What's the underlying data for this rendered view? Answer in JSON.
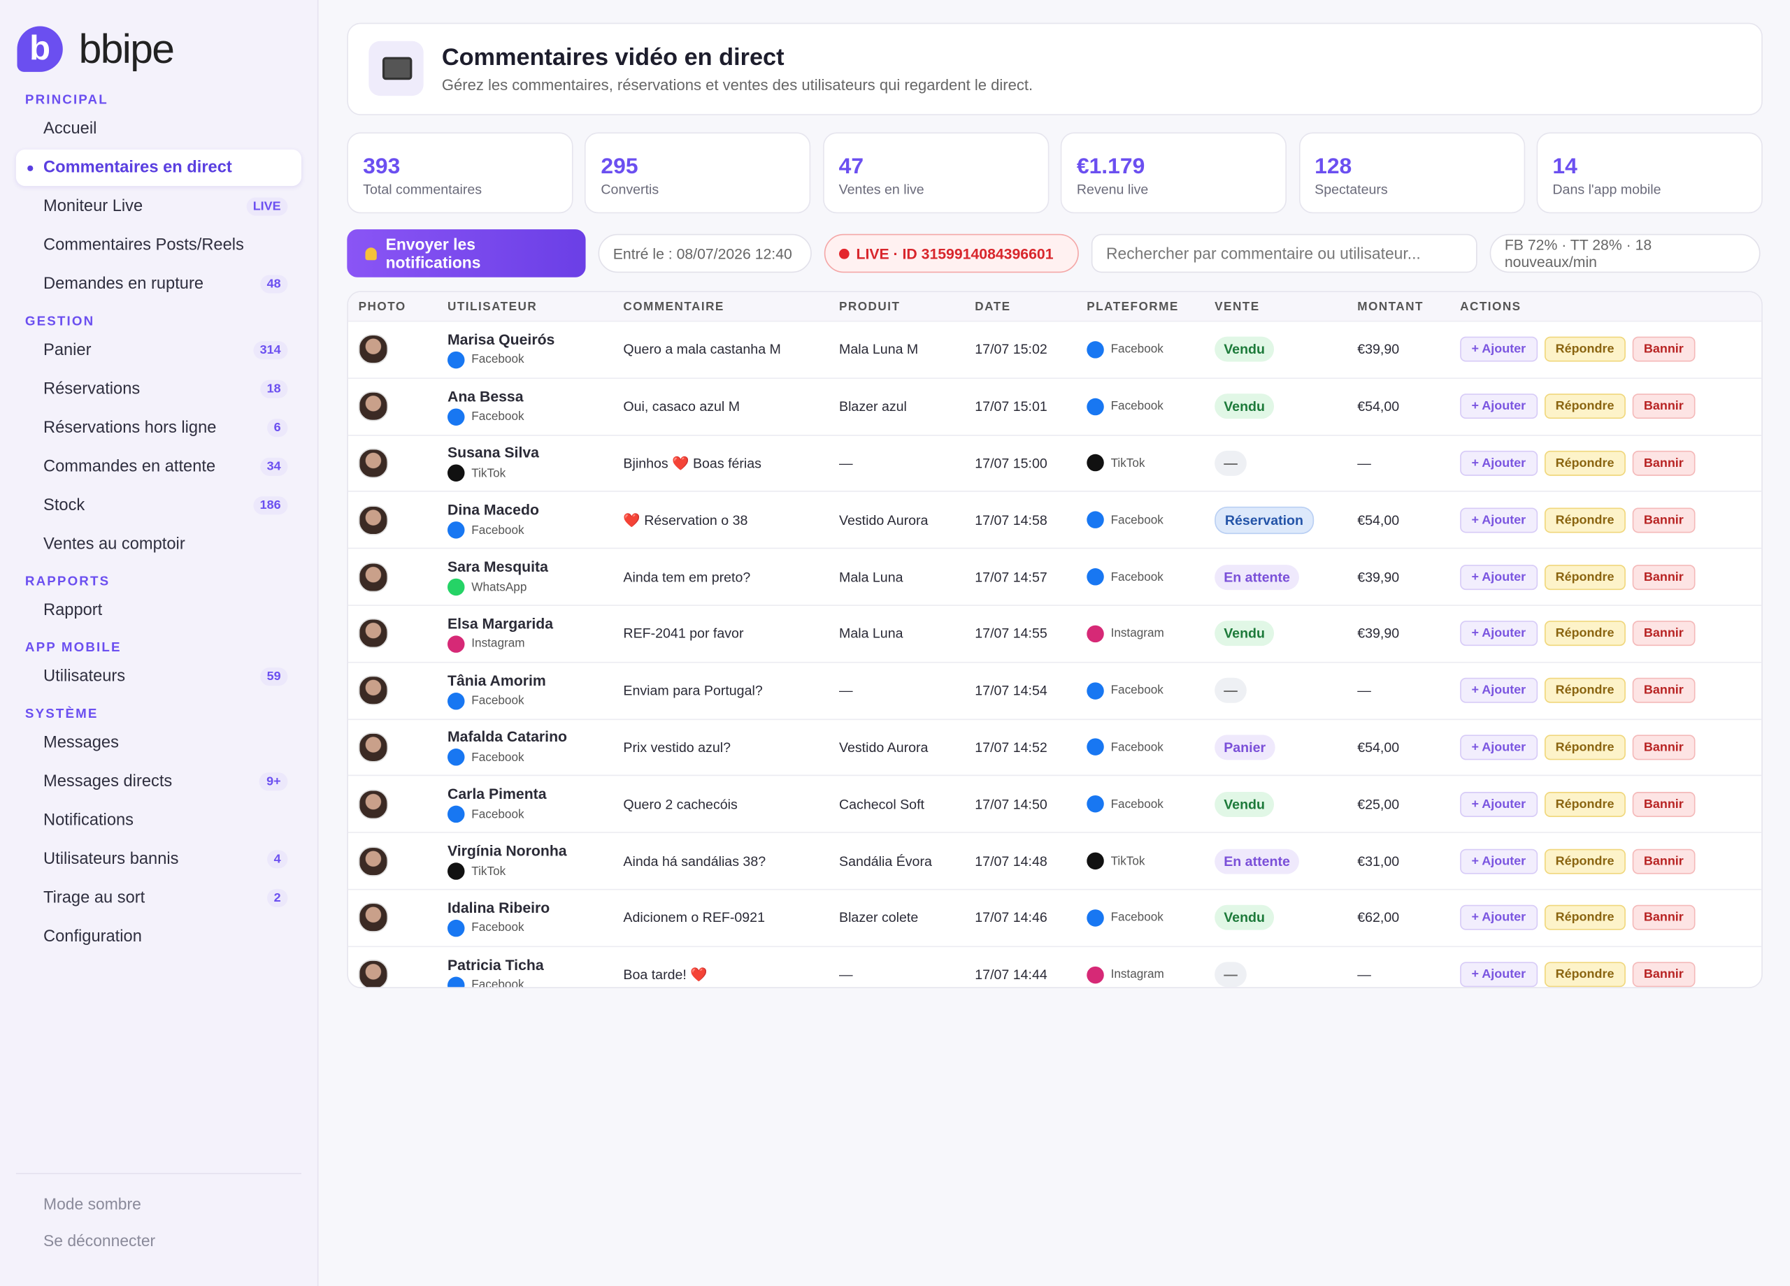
{
  "sidebar": {
    "brand": "bbipe",
    "sections": [
      {
        "title": "PRINCIPAL",
        "items": [
          {
            "label": "Accueil"
          },
          {
            "label": "Commentaires en direct",
            "active": true
          },
          {
            "label": "Moniteur Live",
            "badge": "LIVE"
          },
          {
            "label": "Commentaires Posts/Reels"
          },
          {
            "label": "Demandes en rupture",
            "badge": 48
          }
        ]
      },
      {
        "title": "GESTION",
        "items": [
          {
            "label": "Panier",
            "badge": 314
          },
          {
            "label": "Réservations",
            "badge": 18
          },
          {
            "label": "Réservations hors ligne",
            "badge": 6
          },
          {
            "label": "Commandes en attente",
            "badge": 34
          },
          {
            "label": "Stock",
            "badge": 186
          },
          {
            "label": "Ventes au comptoir"
          }
        ]
      },
      {
        "title": "RAPPORTS",
        "items": [
          {
            "label": "Rapport"
          }
        ]
      },
      {
        "title": "APP MOBILE",
        "items": [
          {
            "label": "Utilisateurs",
            "badge": 59
          }
        ]
      },
      {
        "title": "SYSTÈME",
        "items": [
          {
            "label": "Messages"
          },
          {
            "label": "Messages directs",
            "badge": "9+"
          },
          {
            "label": "Notifications"
          },
          {
            "label": "Utilisateurs bannis",
            "badge": 4
          },
          {
            "label": "Tirage au sort",
            "badge": 2
          },
          {
            "label": "Configuration"
          }
        ]
      }
    ],
    "footer": [
      "Mode sombre",
      "Se déconnecter"
    ]
  },
  "header": {
    "title": "Commentaires vidéo en direct",
    "subtitle": "Gérez les commentaires, réservations et ventes des utilisateurs qui regardent le direct."
  },
  "stats": [
    {
      "value": 393,
      "label": "Total commentaires"
    },
    {
      "value": 295,
      "label": "Convertis"
    },
    {
      "value": 47,
      "label": "Ventes en live"
    },
    {
      "value": "€1.179",
      "label": "Revenu live"
    },
    {
      "value": 128,
      "label": "Spectateurs"
    },
    {
      "value": 14,
      "label": "Dans l'app mobile"
    }
  ],
  "toolbar": {
    "button": "Envoyer les notifications",
    "entered": "Entré le : 08/07/2026 12:40",
    "live": "LIVE · ID 3159914084396601",
    "search_placeholder": "Rechercher par commentaire ou utilisateur...",
    "ratio": "FB 72% · TT 28% · 18 nouveaux/min"
  },
  "platform_colors": {
    "Facebook": "#1877f2",
    "TikTok": "#111111",
    "Instagram": "#d62976",
    "WhatsApp": "#25d366"
  },
  "table": {
    "columns": [
      "PHOTO",
      "UTILISATEUR",
      "COMMENTAIRE",
      "PRODUIT",
      "DATE",
      "PLATEFORME",
      "VENTE",
      "MONTANT",
      "ACTIONS"
    ],
    "actions": [
      "+ Ajouter",
      "Répondre",
      "Bannir"
    ],
    "rows": [
      {
        "user": "Marisa Queirós",
        "source": "Facebook",
        "comment": "Quero a mala castanha M",
        "product": "Mala Luna M",
        "date": "17/07 15:02",
        "platform": "Facebook",
        "sale": "Vendu",
        "tone": "green",
        "amount": "€39,90"
      },
      {
        "user": "Ana Bessa",
        "source": "Facebook",
        "comment": "Oui, casaco azul M",
        "product": "Blazer azul",
        "date": "17/07 15:01",
        "platform": "Facebook",
        "sale": "Vendu",
        "tone": "green",
        "amount": "€54,00"
      },
      {
        "user": "Susana Silva",
        "source": "TikTok",
        "comment": "Bjinhos ❤️ Boas férias",
        "product": "—",
        "date": "17/07 15:00",
        "platform": "TikTok",
        "sale": "—",
        "tone": "gray",
        "amount": "—"
      },
      {
        "user": "Dina Macedo",
        "source": "Facebook",
        "comment": "❤️ Réservation o 38",
        "product": "Vestido Aurora",
        "date": "17/07 14:58",
        "platform": "Facebook",
        "sale": "Réservation",
        "tone": "blue",
        "amount": "€54,00"
      },
      {
        "user": "Sara Mesquita",
        "source": "WhatsApp",
        "comment": "Ainda tem em preto?",
        "product": "Mala Luna",
        "date": "17/07 14:57",
        "platform": "Facebook",
        "sale": "En attente",
        "tone": "purple",
        "amount": "€39,90"
      },
      {
        "user": "Elsa Margarida",
        "source": "Instagram",
        "comment": "REF-2041 por favor",
        "product": "Mala Luna",
        "date": "17/07 14:55",
        "platform": "Instagram",
        "sale": "Vendu",
        "tone": "green",
        "amount": "€39,90"
      },
      {
        "user": "Tânia Amorim",
        "source": "Facebook",
        "comment": "Enviam para Portugal?",
        "product": "—",
        "date": "17/07 14:54",
        "platform": "Facebook",
        "sale": "—",
        "tone": "gray",
        "amount": "—"
      },
      {
        "user": "Mafalda Catarino",
        "source": "Facebook",
        "comment": "Prix vestido azul?",
        "product": "Vestido Aurora",
        "date": "17/07 14:52",
        "platform": "Facebook",
        "sale": "Panier",
        "tone": "purple",
        "amount": "€54,00"
      },
      {
        "user": "Carla Pimenta",
        "source": "Facebook",
        "comment": "Quero 2 cachecóis",
        "product": "Cachecol Soft",
        "date": "17/07 14:50",
        "platform": "Facebook",
        "sale": "Vendu",
        "tone": "green",
        "amount": "€25,00"
      },
      {
        "user": "Virgínia Noronha",
        "source": "TikTok",
        "comment": "Ainda há sandálias 38?",
        "product": "Sandália Évora",
        "date": "17/07 14:48",
        "platform": "TikTok",
        "sale": "En attente",
        "tone": "purple",
        "amount": "€31,00"
      },
      {
        "user": "Idalina Ribeiro",
        "source": "Facebook",
        "comment": "Adicionem o REF-0921",
        "product": "Blazer colete",
        "date": "17/07 14:46",
        "platform": "Facebook",
        "sale": "Vendu",
        "tone": "green",
        "amount": "€62,00"
      },
      {
        "user": "Patricia Ticha",
        "source": "Facebook",
        "comment": "Boa tarde! ❤️",
        "product": "—",
        "date": "17/07 14:44",
        "platform": "Instagram",
        "sale": "—",
        "tone": "gray",
        "amount": "—"
      }
    ]
  }
}
